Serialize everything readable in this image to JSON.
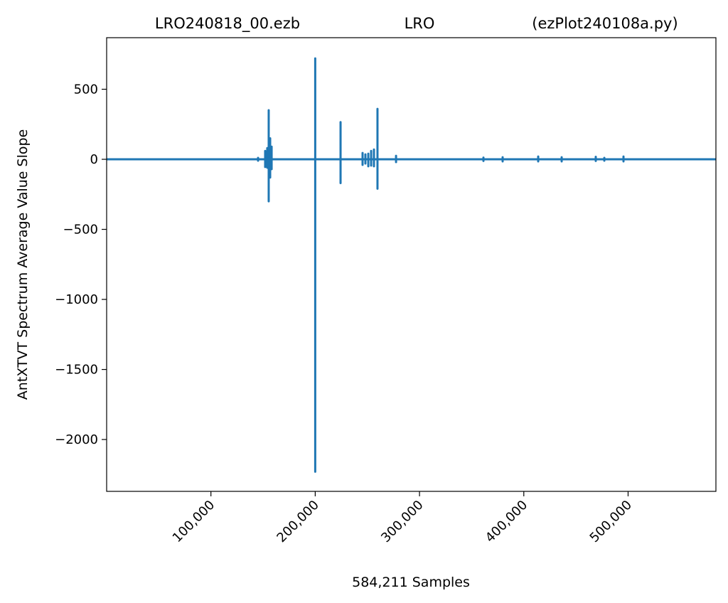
{
  "chart_data": {
    "type": "line",
    "title_parts": [
      "LRO240818_00.ezb",
      "LRO",
      "(ezPlot240108a.py)"
    ],
    "xlabel": "584,211 Samples",
    "ylabel": "AntXTVT Spectrum Average Value Slope",
    "color": "#1f77b4",
    "xlim": [
      0,
      584210
    ],
    "ylim": [
      -2370,
      868
    ],
    "xticks": [
      {
        "value": 100000,
        "label": "100,000"
      },
      {
        "value": 200000,
        "label": "200,000"
      },
      {
        "value": 300000,
        "label": "300,000"
      },
      {
        "value": 400000,
        "label": "400,000"
      },
      {
        "value": 500000,
        "label": "500,000"
      }
    ],
    "yticks": [
      {
        "value": -2000,
        "label": "−2000"
      },
      {
        "value": -1500,
        "label": "−1500"
      },
      {
        "value": -1000,
        "label": "−1000"
      },
      {
        "value": -500,
        "label": "−500"
      },
      0,
      500
    ],
    "x": [
      0,
      145200,
      145200,
      145200,
      145200,
      152000,
      152000,
      152000,
      152000,
      154000,
      154000,
      154000,
      154000,
      155400,
      155400,
      155400,
      155400,
      156800,
      156800,
      156800,
      156800,
      158200,
      158200,
      158200,
      158200,
      200000,
      200000,
      200000,
      200000,
      224300,
      224300,
      224300,
      224300,
      245400,
      245400,
      245400,
      245400,
      248100,
      248100,
      248100,
      248100,
      250900,
      250900,
      250900,
      250900,
      253600,
      253600,
      253600,
      253600,
      256300,
      256300,
      256300,
      256300,
      259700,
      259700,
      259700,
      259700,
      277500,
      277500,
      277500,
      277500,
      361300,
      361300,
      361300,
      361300,
      379700,
      379700,
      379700,
      379700,
      413800,
      413800,
      413800,
      413800,
      436300,
      436300,
      436300,
      436300,
      469000,
      469000,
      469000,
      469000,
      477200,
      477200,
      477200,
      477200,
      495600,
      495600,
      495600,
      495600,
      584210
    ],
    "values": [
      0,
      0,
      10,
      -10,
      0,
      0,
      60,
      -55,
      0,
      0,
      80,
      -60,
      0,
      0,
      350,
      -300,
      0,
      0,
      150,
      -130,
      0,
      0,
      90,
      -70,
      0,
      0,
      720,
      -2230,
      0,
      0,
      265,
      -170,
      0,
      0,
      45,
      -40,
      0,
      0,
      35,
      -30,
      0,
      0,
      40,
      -50,
      0,
      0,
      60,
      -45,
      0,
      0,
      70,
      -50,
      0,
      0,
      360,
      -210,
      0,
      0,
      25,
      -20,
      0,
      0,
      12,
      -12,
      0,
      0,
      15,
      -15,
      0,
      0,
      20,
      -15,
      0,
      0,
      15,
      -15,
      0,
      0,
      18,
      -12,
      0,
      0,
      10,
      -10,
      0,
      0,
      20,
      -15,
      0,
      0
    ]
  }
}
